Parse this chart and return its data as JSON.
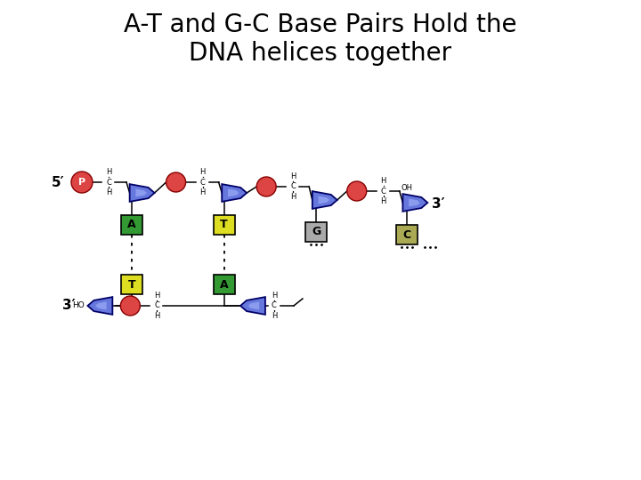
{
  "title_line1": "A-T and G-C Base Pairs Hold the",
  "title_line2": "DNA helices together",
  "title_fontsize": 20,
  "bg_color": "#ffffff",
  "sugar_face": "#6677dd",
  "sugar_highlight": "#99aaff",
  "sugar_edge": "#000066",
  "phosphate_color": "#dd4444",
  "phosphate_edge": "#880000",
  "base_A_color": "#339933",
  "base_T_color": "#dddd22",
  "base_G_color": "#aaaaaa",
  "base_C_color": "#aaaa55",
  "line_color": "#000000",
  "strand5_label": "5′",
  "strand3_label": "3′",
  "ho_label": "HO",
  "oh_label": "OH",
  "p_label": "P"
}
